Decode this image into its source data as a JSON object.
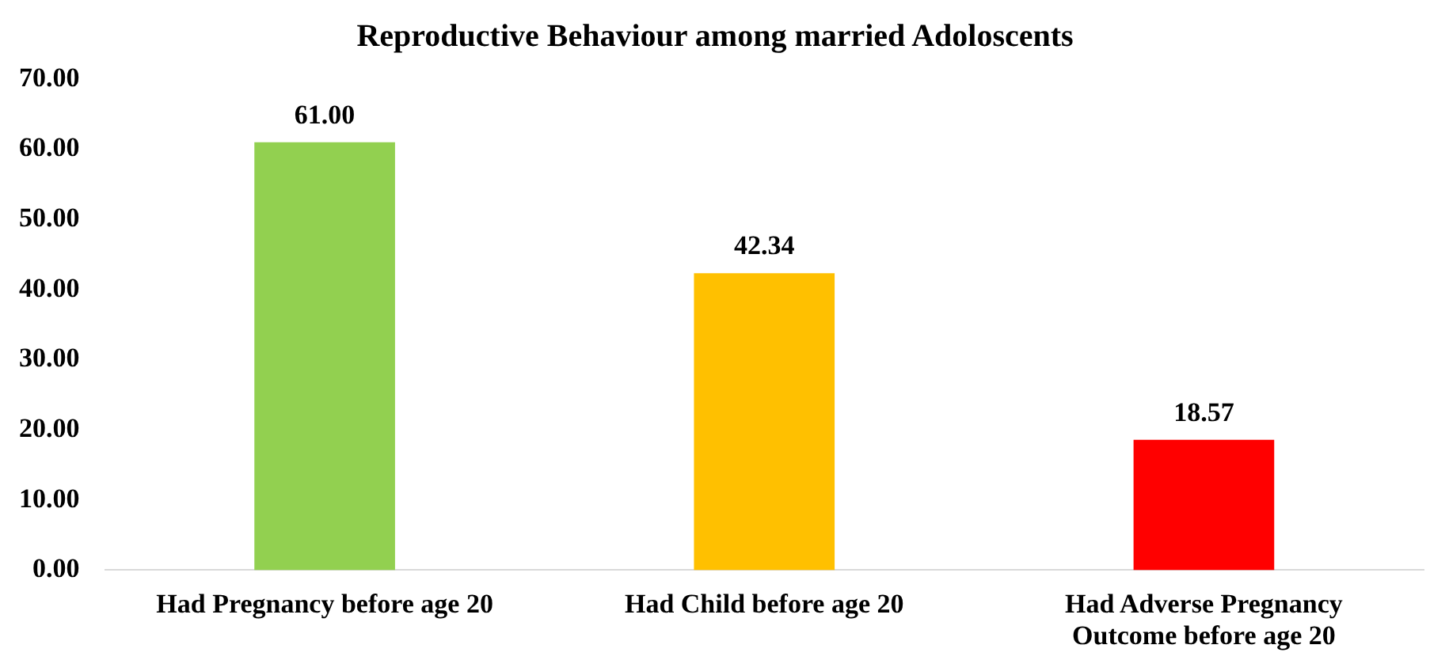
{
  "chart_data": {
    "type": "bar",
    "title": "Reproductive Behaviour among married Adoloscents",
    "categories": [
      "Had Pregnancy before age 20",
      "Had Child before age 20",
      "Had Adverse Pregnancy Outcome before age 20"
    ],
    "values": [
      61.0,
      42.34,
      18.57
    ],
    "colors": [
      "#92d050",
      "#ffc000",
      "#ff0000"
    ],
    "value_labels": [
      "61.00",
      "42.34",
      "18.57"
    ],
    "ylim": [
      0,
      70
    ],
    "yticks": [
      {
        "value": 0,
        "label": "0.00"
      },
      {
        "value": 10,
        "label": "10.00"
      },
      {
        "value": 20,
        "label": "20.00"
      },
      {
        "value": 30,
        "label": "30.00"
      },
      {
        "value": 40,
        "label": "40.00"
      },
      {
        "value": 50,
        "label": "50.00"
      },
      {
        "value": 60,
        "label": "60.00"
      },
      {
        "value": 70,
        "label": "70.00"
      }
    ],
    "grid": false,
    "legend": false
  }
}
